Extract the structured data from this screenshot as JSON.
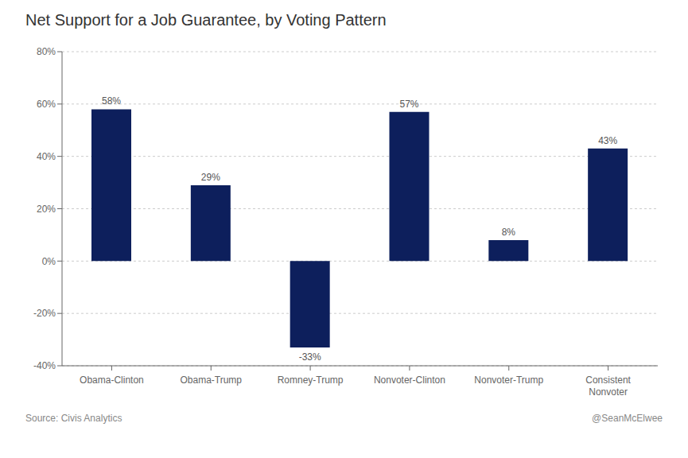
{
  "chart_data": {
    "type": "bar",
    "title": "Net Support for a Job Guarantee, by Voting Pattern",
    "categories": [
      "Obama-Clinton",
      "Obama-Trump",
      "Romney-Trump",
      "Nonvoter-Clinton",
      "Nonvoter-Trump",
      "Consistent\nNonvoter"
    ],
    "values": [
      58,
      29,
      -33,
      57,
      8,
      43
    ],
    "value_labels": [
      "58%",
      "29%",
      "-33%",
      "57%",
      "8%",
      "43%"
    ],
    "data_labels": true,
    "color": "#0d1f5c",
    "ylim": [
      -40,
      80
    ],
    "yticks": [
      {
        "value": -40,
        "label": "-40%"
      },
      {
        "value": -20,
        "label": "-20%"
      },
      {
        "value": 0,
        "label": "0%"
      },
      {
        "value": 20,
        "label": "20%"
      },
      {
        "value": 40,
        "label": "40%"
      },
      {
        "value": 60,
        "label": "60%"
      },
      {
        "value": 80,
        "label": "80%"
      }
    ],
    "grid": true,
    "annotations": [
      "Source: Civis Analytics",
      "@SeanMcElwee"
    ]
  }
}
